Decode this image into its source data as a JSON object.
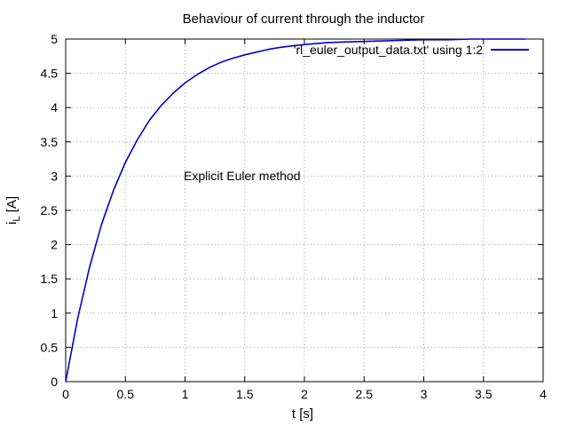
{
  "chart_data": {
    "type": "line",
    "title": "Behaviour of current through the inductor",
    "xlabel": "t [s]",
    "ylabel_main": "i",
    "ylabel_sub": "L",
    "ylabel_unit": " [A]",
    "annotation": "Explicit Euler method",
    "xlim": [
      0,
      4
    ],
    "ylim": [
      0,
      5
    ],
    "xticks": [
      "0",
      "0.5",
      "1",
      "1.5",
      "2",
      "2.5",
      "3",
      "3.5",
      "4"
    ],
    "yticks": [
      "0",
      "0.5",
      "1",
      "1.5",
      "2",
      "2.5",
      "3",
      "3.5",
      "4",
      "4.5",
      "5"
    ],
    "grid": true,
    "legend_position": "top-right",
    "series": [
      {
        "name": "'rl_euler_output_data.txt' using 1:2",
        "color": "#0000cc",
        "x": [
          0,
          0.1,
          0.2,
          0.3,
          0.4,
          0.5,
          0.6,
          0.7,
          0.8,
          0.9,
          1.0,
          1.1,
          1.2,
          1.3,
          1.4,
          1.5,
          1.6,
          1.7,
          1.8,
          1.9,
          2.0,
          2.2,
          2.4,
          2.6,
          2.8,
          3.0,
          3.2,
          3.4,
          3.6,
          3.8,
          3.85
        ],
        "y": [
          0,
          0.92,
          1.67,
          2.29,
          2.79,
          3.2,
          3.53,
          3.81,
          4.03,
          4.21,
          4.36,
          4.48,
          4.58,
          4.66,
          4.72,
          4.77,
          4.81,
          4.85,
          4.88,
          4.9,
          4.92,
          4.95,
          4.96,
          4.97,
          4.98,
          4.99,
          4.99,
          5.0,
          5.0,
          5.0,
          5.0
        ]
      }
    ]
  }
}
